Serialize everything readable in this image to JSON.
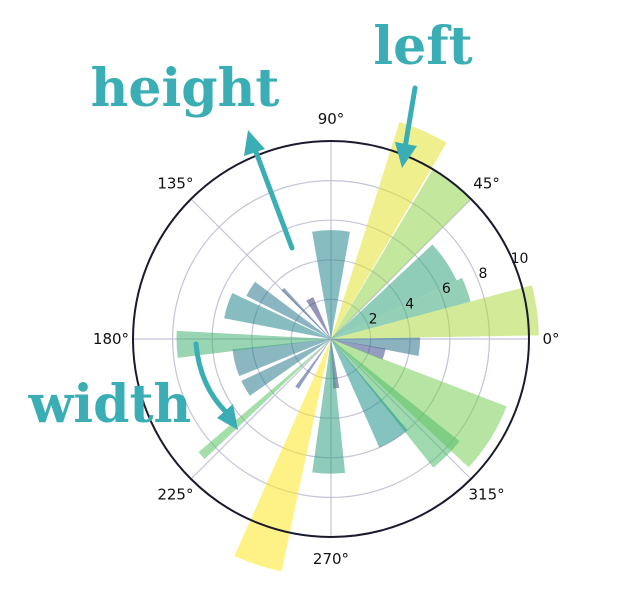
{
  "chart_data": {
    "type": "bar",
    "projection": "polar",
    "angle_ticks": [
      "0°",
      "45°",
      "90°",
      "135°",
      "180°",
      "225°",
      "270°",
      "315°"
    ],
    "radius_ticks": [
      "2",
      "4",
      "6",
      "8",
      "10"
    ],
    "rlim": [
      0,
      10
    ],
    "grid": true,
    "colormap": "viridis",
    "bars": [
      {
        "theta": 90,
        "width": 20,
        "r": 5.5
      },
      {
        "theta": 66,
        "width": 13,
        "r": 11.5
      },
      {
        "theta": 52,
        "width": 14,
        "r": 10.0
      },
      {
        "theta": 34,
        "width": 18,
        "r": 7.0
      },
      {
        "theta": 20,
        "width": 10,
        "r": 7.3
      },
      {
        "theta": 8,
        "width": 14,
        "r": 10.5
      },
      {
        "theta": -5,
        "width": 12,
        "r": 4.5
      },
      {
        "theta": -16,
        "width": 12,
        "r": 2.8
      },
      {
        "theta": -32,
        "width": 22,
        "r": 9.5
      },
      {
        "theta": -45,
        "width": 13,
        "r": 8.3
      },
      {
        "theta": -58,
        "width": 16,
        "r": 6.0
      },
      {
        "theta": -84,
        "width": 7,
        "r": 2.5
      },
      {
        "theta": -91,
        "width": 14,
        "r": 6.8
      },
      {
        "theta": -108,
        "width": 12,
        "r": 12.0
      },
      {
        "theta": -125,
        "width": 4,
        "r": 3.0
      },
      {
        "theta": -138,
        "width": 3,
        "r": 8.8
      },
      {
        "theta": -150,
        "width": 10,
        "r": 5.0
      },
      {
        "theta": -166,
        "width": 16,
        "r": 5.0
      },
      {
        "theta": -178,
        "width": 10,
        "r": 7.8
      },
      {
        "theta": 162,
        "width": 14,
        "r": 5.5
      },
      {
        "theta": 148,
        "width": 10,
        "r": 4.8
      },
      {
        "theta": 134,
        "width": 3,
        "r": 3.5
      },
      {
        "theta": 118,
        "width": 10,
        "r": 2.3
      }
    ],
    "colors": {
      "annotation": "#3aaeb4",
      "grid": "#c3c4d8",
      "frame": "#1a1a2e",
      "viridis": [
        "#440154",
        "#3b528b",
        "#21918c",
        "#5ec962",
        "#fde725"
      ]
    }
  },
  "annotations": {
    "left": "left",
    "height": "height",
    "width": "width"
  }
}
